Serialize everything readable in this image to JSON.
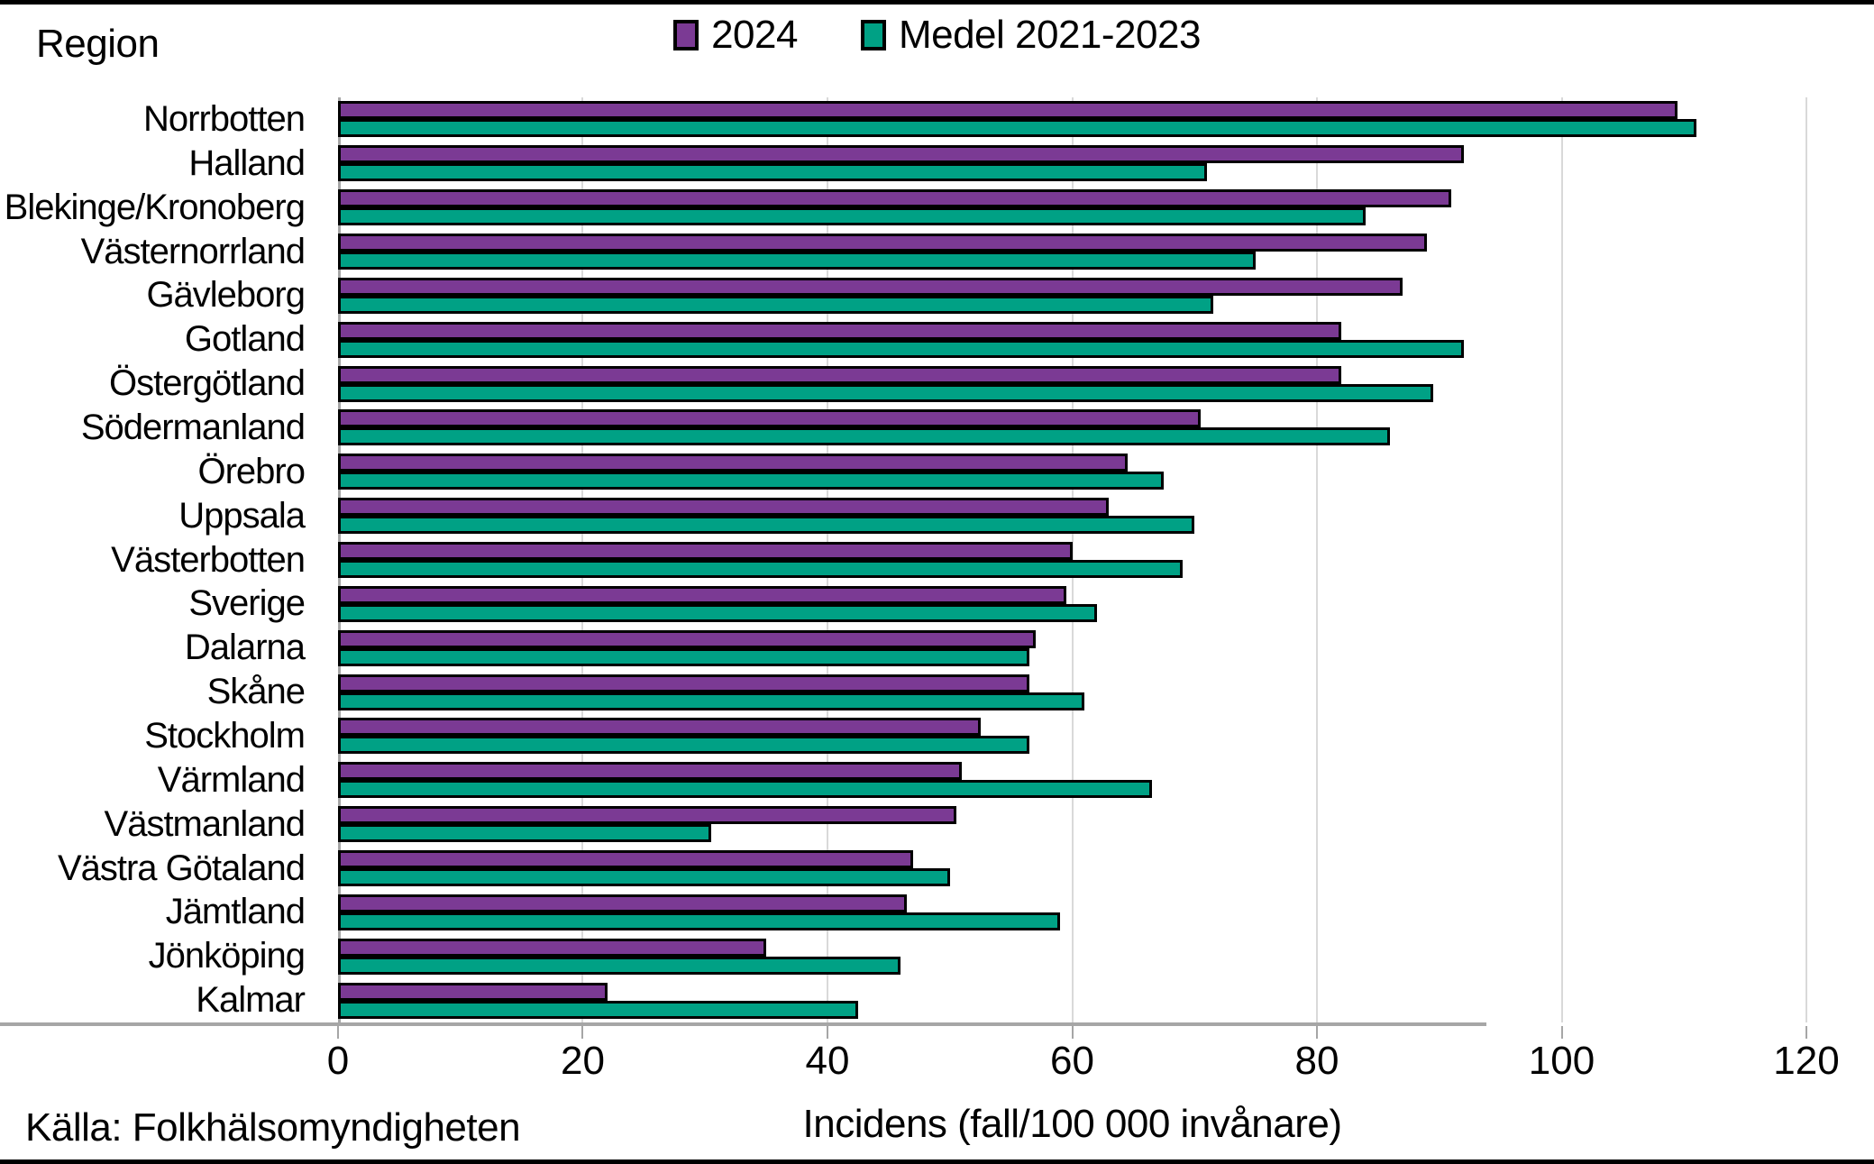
{
  "header": {
    "y_axis_title": "Region"
  },
  "legend": {
    "position": "top-center",
    "items": [
      {
        "label": "2024",
        "color": "#7B3A94"
      },
      {
        "label": "Medel 2021-2023",
        "color": "#00A185"
      }
    ]
  },
  "x_axis": {
    "label": "Incidens (fall/100 000 invånare)",
    "min": 0,
    "max": 120,
    "ticks": [
      0,
      20,
      40,
      60,
      80,
      100,
      120
    ]
  },
  "source": "Källa: Folkhälsomyndigheten",
  "colors": {
    "bar_2024": "#7B3A94",
    "bar_medel": "#00A185",
    "bar_outline": "#000000",
    "gridline": "#D9D9D9",
    "axis_line": "#A6A6A6"
  },
  "chart_data": {
    "type": "bar",
    "orientation": "horizontal",
    "title": "",
    "xlabel": "Incidens (fall/100 000 invånare)",
    "ylabel": "Region",
    "xlim": [
      0,
      120
    ],
    "grid": true,
    "legend_position": "top",
    "categories": [
      "Norrbotten",
      "Halland",
      "Blekinge/Kronoberg",
      "Västernorrland",
      "Gävleborg",
      "Gotland",
      "Östergötland",
      "Södermanland",
      "Örebro",
      "Uppsala",
      "Västerbotten",
      "Sverige",
      "Dalarna",
      "Skåne",
      "Stockholm",
      "Värmland",
      "Västmanland",
      "Västra Götaland",
      "Jämtland",
      "Jönköping",
      "Kalmar"
    ],
    "series": [
      {
        "name": "2024",
        "color": "#7B3A94",
        "values": [
          109.5,
          92,
          91,
          89,
          87,
          82,
          82,
          70.5,
          64.5,
          63,
          60,
          59.5,
          57,
          56.5,
          52.5,
          51,
          50.5,
          47,
          46.5,
          35,
          22
        ]
      },
      {
        "name": "Medel 2021-2023",
        "color": "#00A185",
        "values": [
          111,
          71,
          84,
          75,
          71.5,
          92,
          89.5,
          86,
          67.5,
          70,
          69,
          62,
          56.5,
          61,
          56.5,
          66.5,
          30.5,
          50,
          59,
          46,
          42.5
        ]
      }
    ]
  }
}
